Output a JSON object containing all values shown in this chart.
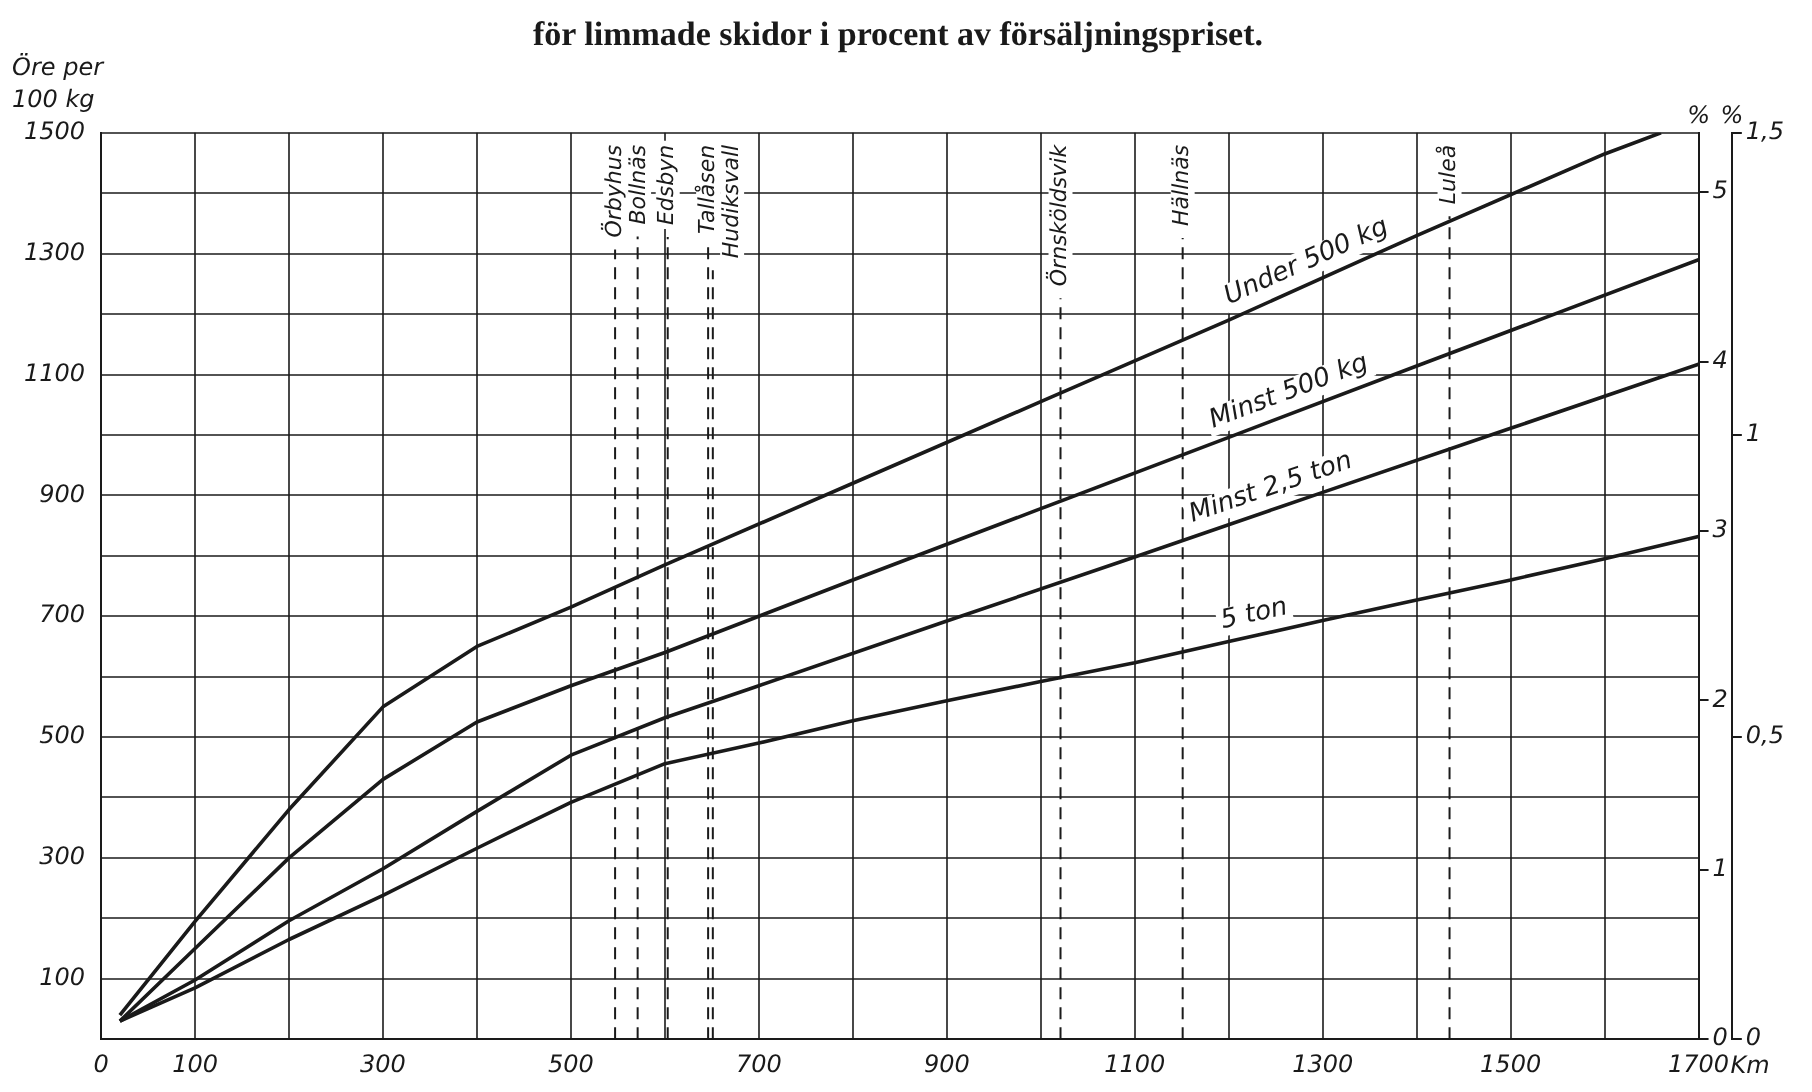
{
  "chart_data": {
    "type": "line",
    "title": "för limmade skidor i procent av försäljningspriset.",
    "ylabel": "Öre per 100 kg",
    "xlabel": "Km",
    "y2label": "%",
    "y3label": "%",
    "xlim": [
      0,
      1700
    ],
    "xticks": [
      0,
      100,
      {
        "value": 200,
        "label": null
      },
      300,
      {
        "value": 400,
        "label": null
      },
      500,
      {
        "value": 600,
        "label": null
      },
      700,
      {
        "value": 800,
        "label": null
      },
      900,
      {
        "value": 1000,
        "label": null
      },
      1100,
      {
        "value": 1200,
        "label": null
      },
      1300,
      {
        "value": 1400,
        "label": null
      },
      1500,
      {
        "value": 1600,
        "label": null
      },
      1700
    ],
    "ylim": [
      0,
      1500
    ],
    "yticks": [
      {
        "value": 0,
        "label": null
      },
      100,
      {
        "value": 200,
        "label": null
      },
      300,
      {
        "value": 400,
        "label": null
      },
      500,
      {
        "value": 600,
        "label": null
      },
      700,
      {
        "value": 800,
        "label": null
      },
      900,
      {
        "value": 1000,
        "label": null
      },
      1100,
      {
        "value": 1200,
        "label": null
      },
      1300,
      {
        "value": 1400,
        "label": null
      },
      1500
    ],
    "y2lim": [
      0,
      5.35
    ],
    "y2ticks": [
      0,
      1,
      2,
      3,
      4,
      5
    ],
    "y3lim": [
      0,
      1.5
    ],
    "y3ticks": [
      0,
      {
        "value": 0.5,
        "label": "0,5"
      },
      1,
      {
        "value": 1.5,
        "label": "1,5"
      }
    ],
    "grid": true,
    "legend": false,
    "marker": "none",
    "line_style": "solid",
    "series": [
      {
        "name": "Under 500 kg",
        "color": "#1a1a1a",
        "x": [
          20,
          100,
          200,
          300,
          400,
          500,
          600,
          800,
          1000,
          1200,
          1400,
          1600,
          1660
        ],
        "values": [
          40,
          195,
          380,
          550,
          650,
          715,
          785,
          920,
          1055,
          1190,
          1330,
          1465,
          1500
        ]
      },
      {
        "name": "Minst 500 kg",
        "color": "#1a1a1a",
        "x": [
          20,
          100,
          200,
          300,
          400,
          500,
          600,
          800,
          1000,
          1200,
          1400,
          1700
        ],
        "values": [
          30,
          150,
          300,
          430,
          525,
          585,
          640,
          760,
          878,
          996,
          1114,
          1290
        ]
      },
      {
        "name": "Minst 2,5 ton",
        "color": "#1a1a1a",
        "x": [
          20,
          100,
          200,
          300,
          400,
          500,
          600,
          700,
          900,
          1100,
          1300,
          1500,
          1700
        ],
        "values": [
          30,
          98,
          196,
          282,
          377,
          470,
          532,
          585,
          692,
          798,
          905,
          1011,
          1117
        ]
      },
      {
        "name": "5 ton",
        "color": "#1a1a1a",
        "x": [
          20,
          100,
          200,
          300,
          400,
          500,
          600,
          700,
          800,
          900,
          1000,
          1100,
          1200,
          1300,
          1400,
          1500,
          1600,
          1700
        ],
        "values": [
          30,
          85,
          165,
          238,
          316,
          392,
          456,
          490,
          527,
          560,
          592,
          623,
          658,
          693,
          727,
          760,
          795,
          832
        ]
      }
    ],
    "ref_lines": [
      {
        "axis": "x",
        "value": 547,
        "label": "Örbyhus",
        "line_style": "dashed"
      },
      {
        "axis": "x",
        "value": 571,
        "label": "Bollnäs",
        "line_style": "dashed"
      },
      {
        "axis": "x",
        "value": 603,
        "label": "Edsbyn",
        "line_style": "dashed"
      },
      {
        "axis": "x",
        "value": 646,
        "label": "Tallåsen",
        "line_style": "dashed"
      },
      {
        "axis": "x",
        "value": 651,
        "label": "Hudiksvall",
        "line_style": "dashed"
      },
      {
        "axis": "x",
        "value": 1021,
        "label": "Örnsköldsvik",
        "line_style": "dashed"
      },
      {
        "axis": "x",
        "value": 1151,
        "label": "Hällnäs",
        "line_style": "dashed"
      },
      {
        "axis": "x",
        "value": 1435,
        "label": "Luleå",
        "line_style": "dashed"
      }
    ]
  }
}
